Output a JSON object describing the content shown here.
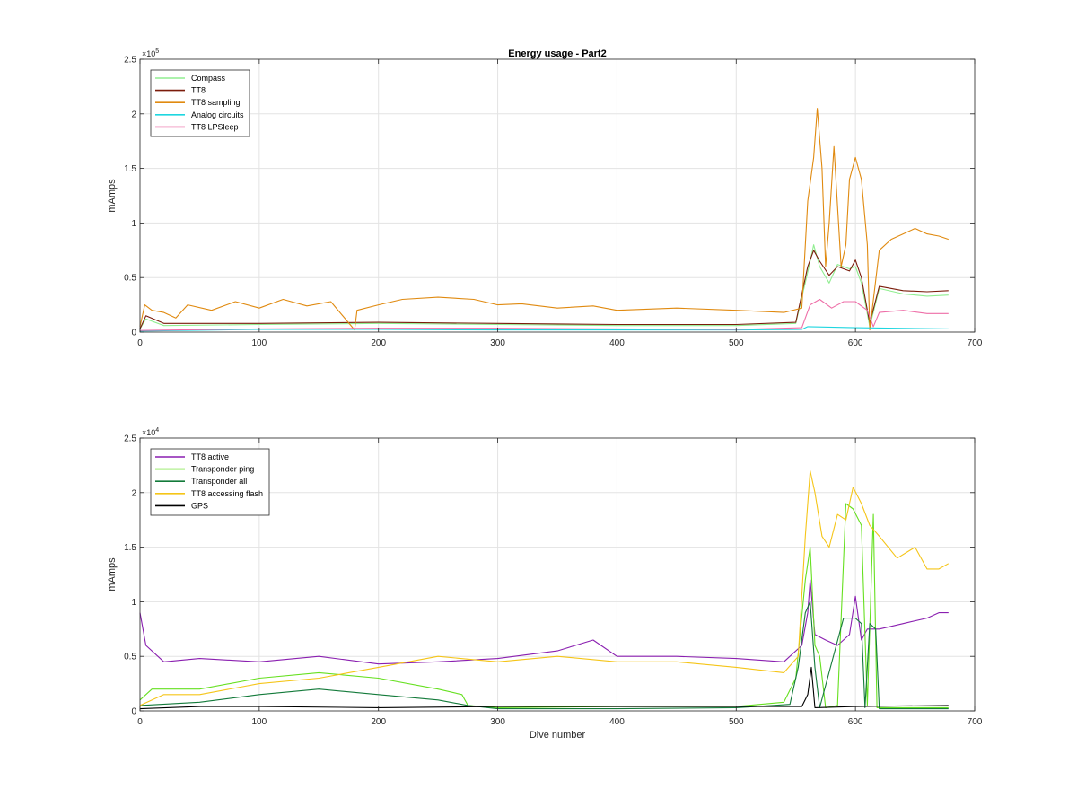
{
  "figure": {
    "title": "Energy usage - Part2"
  },
  "chart_data": [
    {
      "type": "line",
      "title": "Energy usage - Part2",
      "xlabel": "",
      "ylabel": "mAmps",
      "xlim": [
        0,
        700
      ],
      "ylim": [
        0,
        250000
      ],
      "x_ticks": [
        0,
        100,
        200,
        300,
        400,
        500,
        600,
        700
      ],
      "y_ticks": [
        0,
        50000,
        100000,
        150000,
        200000,
        250000
      ],
      "y_tick_labels": [
        "0",
        "0.5",
        "1",
        "1.5",
        "2",
        "2.5"
      ],
      "y_exponent_label": "×10",
      "y_exponent_power": "5",
      "grid": true,
      "legend_position": "top-left",
      "series": [
        {
          "name": "Compass",
          "color": "#90ee90",
          "points": [
            [
              0,
              3000
            ],
            [
              5,
              12000
            ],
            [
              20,
              6000
            ],
            [
              100,
              7000
            ],
            [
              200,
              8000
            ],
            [
              300,
              7000
            ],
            [
              400,
              6000
            ],
            [
              500,
              6000
            ],
            [
              550,
              8000
            ],
            [
              560,
              55000
            ],
            [
              565,
              80000
            ],
            [
              570,
              60000
            ],
            [
              578,
              45000
            ],
            [
              585,
              62000
            ],
            [
              595,
              58000
            ],
            [
              600,
              60000
            ],
            [
              605,
              45000
            ],
            [
              612,
              5000
            ],
            [
              620,
              40000
            ],
            [
              640,
              35000
            ],
            [
              660,
              33000
            ],
            [
              678,
              34000
            ]
          ]
        },
        {
          "name": "TT8",
          "color": "#7b1c0b",
          "points": [
            [
              0,
              3000
            ],
            [
              5,
              15000
            ],
            [
              20,
              8000
            ],
            [
              100,
              8000
            ],
            [
              200,
              9000
            ],
            [
              300,
              8000
            ],
            [
              400,
              7000
            ],
            [
              500,
              7000
            ],
            [
              550,
              9000
            ],
            [
              560,
              60000
            ],
            [
              565,
              75000
            ],
            [
              570,
              65000
            ],
            [
              578,
              52000
            ],
            [
              585,
              60000
            ],
            [
              595,
              56000
            ],
            [
              600,
              66000
            ],
            [
              605,
              50000
            ],
            [
              612,
              8000
            ],
            [
              620,
              42000
            ],
            [
              640,
              38000
            ],
            [
              660,
              37000
            ],
            [
              678,
              38000
            ]
          ]
        },
        {
          "name": "TT8 sampling",
          "color": "#e08a10",
          "points": [
            [
              0,
              5000
            ],
            [
              4,
              25000
            ],
            [
              10,
              20000
            ],
            [
              20,
              18000
            ],
            [
              30,
              13000
            ],
            [
              40,
              25000
            ],
            [
              60,
              20000
            ],
            [
              80,
              28000
            ],
            [
              100,
              22000
            ],
            [
              120,
              30000
            ],
            [
              140,
              24000
            ],
            [
              160,
              28000
            ],
            [
              180,
              2000
            ],
            [
              182,
              20000
            ],
            [
              200,
              25000
            ],
            [
              220,
              30000
            ],
            [
              250,
              32000
            ],
            [
              280,
              30000
            ],
            [
              300,
              25000
            ],
            [
              320,
              26000
            ],
            [
              350,
              22000
            ],
            [
              380,
              24000
            ],
            [
              400,
              20000
            ],
            [
              450,
              22000
            ],
            [
              500,
              20000
            ],
            [
              540,
              18000
            ],
            [
              555,
              22000
            ],
            [
              560,
              120000
            ],
            [
              565,
              160000
            ],
            [
              568,
              205000
            ],
            [
              572,
              150000
            ],
            [
              575,
              60000
            ],
            [
              578,
              100000
            ],
            [
              582,
              170000
            ],
            [
              588,
              60000
            ],
            [
              592,
              80000
            ],
            [
              595,
              140000
            ],
            [
              600,
              160000
            ],
            [
              605,
              140000
            ],
            [
              610,
              80000
            ],
            [
              612,
              2000
            ],
            [
              620,
              75000
            ],
            [
              630,
              85000
            ],
            [
              640,
              90000
            ],
            [
              650,
              95000
            ],
            [
              660,
              90000
            ],
            [
              670,
              88000
            ],
            [
              678,
              85000
            ]
          ]
        },
        {
          "name": "Analog circuits",
          "color": "#1fd6e0",
          "points": [
            [
              0,
              1000
            ],
            [
              100,
              2500
            ],
            [
              200,
              2500
            ],
            [
              300,
              2000
            ],
            [
              400,
              2000
            ],
            [
              500,
              2000
            ],
            [
              555,
              2500
            ],
            [
              560,
              5000
            ],
            [
              600,
              4000
            ],
            [
              678,
              3000
            ]
          ]
        },
        {
          "name": "TT8 LPSleep",
          "color": "#ee6fa8",
          "points": [
            [
              0,
              1500
            ],
            [
              100,
              3000
            ],
            [
              200,
              3500
            ],
            [
              300,
              3500
            ],
            [
              400,
              3000
            ],
            [
              500,
              2500
            ],
            [
              555,
              4000
            ],
            [
              562,
              25000
            ],
            [
              570,
              30000
            ],
            [
              580,
              22000
            ],
            [
              590,
              28000
            ],
            [
              600,
              28000
            ],
            [
              610,
              20000
            ],
            [
              615,
              5000
            ],
            [
              620,
              18000
            ],
            [
              640,
              20000
            ],
            [
              660,
              17000
            ],
            [
              678,
              17000
            ]
          ]
        }
      ]
    },
    {
      "type": "line",
      "title": "",
      "xlabel": "Dive number",
      "ylabel": "mAmps",
      "xlim": [
        0,
        700
      ],
      "ylim": [
        0,
        25000
      ],
      "x_ticks": [
        0,
        100,
        200,
        300,
        400,
        500,
        600,
        700
      ],
      "y_ticks": [
        0,
        5000,
        10000,
        15000,
        20000,
        25000
      ],
      "y_tick_labels": [
        "0",
        "0.5",
        "1",
        "1.5",
        "2",
        "2.5"
      ],
      "y_exponent_label": "×10",
      "y_exponent_power": "4",
      "grid": true,
      "legend_position": "top-left",
      "series": [
        {
          "name": "TT8 active",
          "color": "#8a1fb0",
          "points": [
            [
              0,
              9000
            ],
            [
              5,
              6000
            ],
            [
              20,
              4500
            ],
            [
              50,
              4800
            ],
            [
              100,
              4500
            ],
            [
              150,
              5000
            ],
            [
              200,
              4300
            ],
            [
              250,
              4500
            ],
            [
              300,
              4800
            ],
            [
              350,
              5500
            ],
            [
              380,
              6500
            ],
            [
              400,
              5000
            ],
            [
              450,
              5000
            ],
            [
              500,
              4800
            ],
            [
              540,
              4500
            ],
            [
              555,
              6000
            ],
            [
              560,
              9000
            ],
            [
              562,
              12000
            ],
            [
              566,
              7000
            ],
            [
              575,
              6500
            ],
            [
              585,
              6000
            ],
            [
              595,
              7000
            ],
            [
              600,
              10500
            ],
            [
              605,
              6500
            ],
            [
              610,
              7500
            ],
            [
              620,
              7500
            ],
            [
              640,
              8000
            ],
            [
              660,
              8500
            ],
            [
              670,
              9000
            ],
            [
              678,
              9000
            ]
          ]
        },
        {
          "name": "Transponder ping",
          "color": "#66e020",
          "points": [
            [
              0,
              1000
            ],
            [
              10,
              2000
            ],
            [
              50,
              2000
            ],
            [
              100,
              3000
            ],
            [
              150,
              3500
            ],
            [
              200,
              3000
            ],
            [
              250,
              2000
            ],
            [
              270,
              1500
            ],
            [
              275,
              500
            ],
            [
              300,
              300
            ],
            [
              400,
              400
            ],
            [
              500,
              400
            ],
            [
              540,
              800
            ],
            [
              550,
              3000
            ],
            [
              558,
              12000
            ],
            [
              562,
              15000
            ],
            [
              566,
              6000
            ],
            [
              570,
              5000
            ],
            [
              575,
              300
            ],
            [
              585,
              500
            ],
            [
              592,
              19000
            ],
            [
              598,
              18500
            ],
            [
              605,
              17000
            ],
            [
              610,
              500
            ],
            [
              615,
              18000
            ],
            [
              618,
              300
            ],
            [
              678,
              300
            ]
          ]
        },
        {
          "name": "Transponder all",
          "color": "#137a3a",
          "points": [
            [
              0,
              500
            ],
            [
              50,
              800
            ],
            [
              100,
              1500
            ],
            [
              150,
              2000
            ],
            [
              200,
              1500
            ],
            [
              250,
              1000
            ],
            [
              275,
              500
            ],
            [
              300,
              200
            ],
            [
              400,
              200
            ],
            [
              500,
              300
            ],
            [
              545,
              600
            ],
            [
              552,
              4000
            ],
            [
              558,
              9000
            ],
            [
              562,
              10000
            ],
            [
              566,
              4000
            ],
            [
              570,
              300
            ],
            [
              590,
              8500
            ],
            [
              600,
              8500
            ],
            [
              605,
              8000
            ],
            [
              608,
              300
            ],
            [
              612,
              8000
            ],
            [
              617,
              7500
            ],
            [
              620,
              200
            ],
            [
              678,
              200
            ]
          ]
        },
        {
          "name": "TT8 accessing flash",
          "color": "#f5c518",
          "points": [
            [
              0,
              500
            ],
            [
              20,
              1500
            ],
            [
              50,
              1500
            ],
            [
              100,
              2500
            ],
            [
              150,
              3000
            ],
            [
              200,
              4000
            ],
            [
              250,
              5000
            ],
            [
              300,
              4500
            ],
            [
              350,
              5000
            ],
            [
              400,
              4500
            ],
            [
              450,
              4500
            ],
            [
              500,
              4000
            ],
            [
              540,
              3500
            ],
            [
              552,
              5000
            ],
            [
              558,
              16000
            ],
            [
              562,
              22000
            ],
            [
              566,
              20000
            ],
            [
              572,
              16000
            ],
            [
              578,
              15000
            ],
            [
              585,
              18000
            ],
            [
              592,
              17500
            ],
            [
              598,
              20500
            ],
            [
              605,
              19000
            ],
            [
              612,
              17000
            ],
            [
              620,
              16000
            ],
            [
              635,
              14000
            ],
            [
              650,
              15000
            ],
            [
              660,
              13000
            ],
            [
              670,
              13000
            ],
            [
              678,
              13500
            ]
          ]
        },
        {
          "name": "GPS",
          "color": "#000000",
          "points": [
            [
              0,
              200
            ],
            [
              50,
              400
            ],
            [
              100,
              400
            ],
            [
              200,
              300
            ],
            [
              300,
              400
            ],
            [
              400,
              400
            ],
            [
              500,
              400
            ],
            [
              555,
              400
            ],
            [
              560,
              1500
            ],
            [
              563,
              4000
            ],
            [
              566,
              300
            ],
            [
              600,
              400
            ],
            [
              678,
              500
            ]
          ]
        }
      ]
    }
  ]
}
